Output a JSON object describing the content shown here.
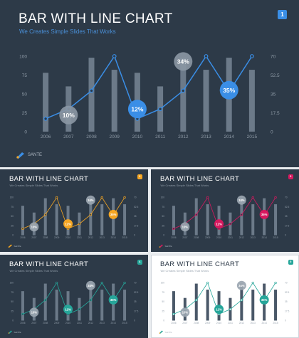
{
  "slides": [
    {
      "title": "BAR WITH LINE CHART",
      "subtitle": "We Creates Simple Slides That Works",
      "badge": "1",
      "brand": "SANTE",
      "bg": "#2d3a48",
      "accent": "#3a8ee6",
      "icon": "brush-logo-icon"
    },
    {
      "title": "BAR WITH LINE CHART",
      "subtitle": "We Creates Simple Slides That Works",
      "badge": "2",
      "brand": "SANTE",
      "bg": "#2d3a48",
      "accent": "#f5a623",
      "icon": "brush-logo-icon"
    },
    {
      "title": "BAR WITH LINE CHART",
      "subtitle": "We Creates Simple Slides That Works",
      "badge": "3",
      "brand": "SANTE",
      "bg": "#2d3a48",
      "accent": "#d6195f",
      "icon": "brush-logo-icon"
    },
    {
      "title": "BAR WITH LINE CHART",
      "subtitle": "We Creates Simple Slides That Works",
      "badge": "4",
      "brand": "SANTE",
      "bg": "#2d3a48",
      "accent": "#26a69a",
      "icon": "brush-logo-icon"
    },
    {
      "title": "BAR WITH LINE CHART",
      "subtitle": "We Creates Simple Slides That Works",
      "badge": "5",
      "brand": "SANTE",
      "bg": "#ffffff",
      "accent": "#26a69a",
      "icon": "brush-logo-icon"
    }
  ],
  "chart_data": {
    "type": "bar",
    "categories": [
      "2006",
      "2007",
      "2008",
      "2009",
      "2010",
      "2011",
      "2012",
      "2013",
      "2014",
      "2015"
    ],
    "series": [
      {
        "type": "bar",
        "values": [
          78,
          60,
          98,
          82,
          78,
          60,
          98,
          82,
          98,
          82
        ]
      },
      {
        "type": "line",
        "values": [
          12,
          21,
          38,
          70,
          12,
          21,
          38,
          70,
          37,
          70
        ]
      }
    ],
    "yticks_left": [
      "0",
      "25",
      "50",
      "75",
      "100"
    ],
    "yticks_right": [
      "0",
      "17.5",
      "35",
      "52.5",
      "70"
    ],
    "ylim_left": [
      0,
      100
    ],
    "ylim_right": [
      0,
      70
    ],
    "annotations": [
      {
        "category": "2007",
        "label": "10%",
        "style": "neutral",
        "level": 0.22
      },
      {
        "category": "2010",
        "label": "12%",
        "style": "accent",
        "level": 0.3
      },
      {
        "category": "2012",
        "label": "34%",
        "style": "neutral",
        "level": 0.93
      },
      {
        "category": "2014",
        "label": "35%",
        "style": "accent",
        "level": 0.55
      }
    ],
    "grid": false
  }
}
